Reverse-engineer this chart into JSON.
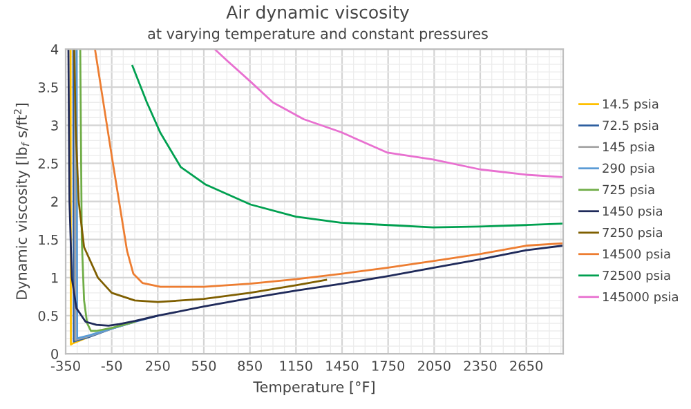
{
  "chart_data": {
    "type": "line",
    "title": "Air dynamic viscosity",
    "subtitle": "at varying temperature and constant pressures",
    "xlabel": "Temperature [°F]",
    "ylabel": "Dynamic viscosity [lb$_{f}$ s/ft$^{2}$]",
    "xlim": [
      -350,
      2890
    ],
    "xticks": [
      -350,
      -50,
      250,
      550,
      850,
      1150,
      1450,
      1750,
      2050,
      2350,
      2650
    ],
    "ylim": [
      0,
      4
    ],
    "yticks": [
      0,
      0.5,
      1,
      1.5,
      2,
      2.5,
      3,
      3.5,
      4
    ],
    "grid": true,
    "legend": "right",
    "marker": "none",
    "line_style": "solid",
    "series": [
      {
        "name": "14.5 psia",
        "color": "#ffc000",
        "x": [
          -318,
          -316,
          -300,
          -200
        ],
        "values": [
          4,
          0.12,
          0.14,
          0.22
        ]
      },
      {
        "name": "72.5 psia",
        "color": "#2e5fa0",
        "x": [
          -300,
          -297,
          -285,
          -200,
          -50,
          100,
          250
        ],
        "values": [
          4,
          0.16,
          0.17,
          0.22,
          0.33,
          0.42,
          0.5
        ]
      },
      {
        "name": "145 psia",
        "color": "#a5a5a5",
        "x": [
          -290,
          -287,
          -275,
          -200,
          -50,
          100
        ],
        "values": [
          4,
          0.18,
          0.19,
          0.23,
          0.33,
          0.42
        ]
      },
      {
        "name": "290 psia",
        "color": "#5b9bd5",
        "x": [
          -278,
          -275,
          -260,
          -200,
          -50,
          100
        ],
        "values": [
          4,
          0.2,
          0.21,
          0.24,
          0.33,
          0.42
        ]
      },
      {
        "name": "725 psia",
        "color": "#70ad47",
        "x": [
          -255,
          -245,
          -230,
          -210,
          -185,
          -150,
          -50,
          100
        ],
        "values": [
          4,
          1.5,
          0.7,
          0.4,
          0.3,
          0.3,
          0.34,
          0.42
        ]
      },
      {
        "name": "1450 psia",
        "color": "#1f2a5a",
        "x": [
          -332,
          -325,
          -310,
          -280,
          -220,
          -150,
          -70,
          0,
          100,
          250,
          550,
          850,
          1150,
          1450,
          1750,
          2050,
          2350,
          2650,
          2890
        ],
        "values": [
          4,
          2,
          1,
          0.6,
          0.42,
          0.38,
          0.37,
          0.39,
          0.43,
          0.5,
          0.62,
          0.73,
          0.83,
          0.92,
          1.02,
          1.13,
          1.24,
          1.36,
          1.42
        ]
      },
      {
        "name": "7250 psia",
        "color": "#7f5f00",
        "x": [
          -294,
          -285,
          -265,
          -230,
          -140,
          -50,
          100,
          250,
          550,
          850,
          1150,
          1346
        ],
        "values": [
          4,
          3,
          2,
          1.4,
          1.0,
          0.8,
          0.7,
          0.68,
          0.72,
          0.8,
          0.9,
          0.97
        ]
      },
      {
        "name": "14500 psia",
        "color": "#ed7d31",
        "x": [
          -159,
          -50,
          50,
          91,
          150,
          267,
          550,
          850,
          1150,
          1443,
          1750,
          2050,
          2350,
          2650,
          2890
        ],
        "values": [
          4,
          2.6,
          1.35,
          1.05,
          0.93,
          0.88,
          0.88,
          0.92,
          0.98,
          1.05,
          1.13,
          1.22,
          1.31,
          1.42,
          1.45
        ]
      },
      {
        "name": "72500 psia",
        "color": "#00a050",
        "x": [
          85,
          179,
          267,
          400,
          563,
          854,
          1150,
          1443,
          1750,
          2043,
          2350,
          2650,
          2890
        ],
        "values": [
          3.78,
          3.3,
          2.9,
          2.45,
          2.22,
          1.96,
          1.8,
          1.72,
          1.69,
          1.66,
          1.67,
          1.69,
          1.71
        ]
      },
      {
        "name": "145000 psia",
        "color": "#e870d0",
        "x": [
          620,
          700,
          850,
          1000,
          1200,
          1443,
          1746,
          2043,
          2350,
          2650,
          2890
        ],
        "values": [
          4,
          3.85,
          3.58,
          3.3,
          3.08,
          2.91,
          2.64,
          2.55,
          2.42,
          2.35,
          2.32
        ]
      }
    ]
  }
}
